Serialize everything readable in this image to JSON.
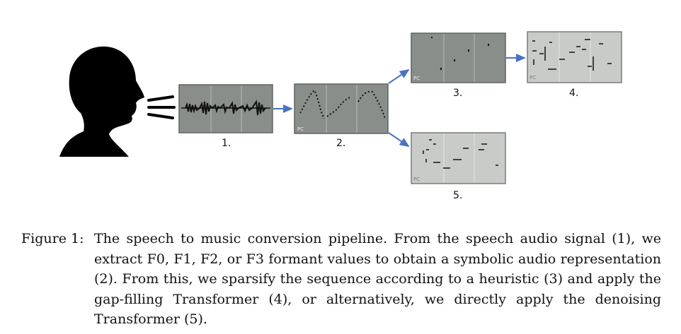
{
  "panels": [
    {
      "label": "1.",
      "kind": "waveform"
    },
    {
      "label": "2.",
      "kind": "contour"
    },
    {
      "label": "3.",
      "kind": "sparse"
    },
    {
      "label": "4.",
      "kind": "gap-filled"
    },
    {
      "label": "5.",
      "kind": "denoised"
    }
  ],
  "pc_tag": "PC",
  "colors": {
    "panel_dark": "#8a8e8b",
    "panel_light": "#c9cbc9",
    "arrow": "#4a72c4",
    "silhouette": "#000000"
  },
  "caption": {
    "lead": "Figure 1:",
    "body": "The speech to music conversion pipeline. From the speech audio signal (1), we extract F0, F1, F2, or F3 formant values to obtain a symbolic audio representation (2). From this, we sparsify the sequence according to a heuristic (3) and apply the gap-filling Transformer (4), or alternatively, we directly apply the denoising Transformer (5)."
  }
}
